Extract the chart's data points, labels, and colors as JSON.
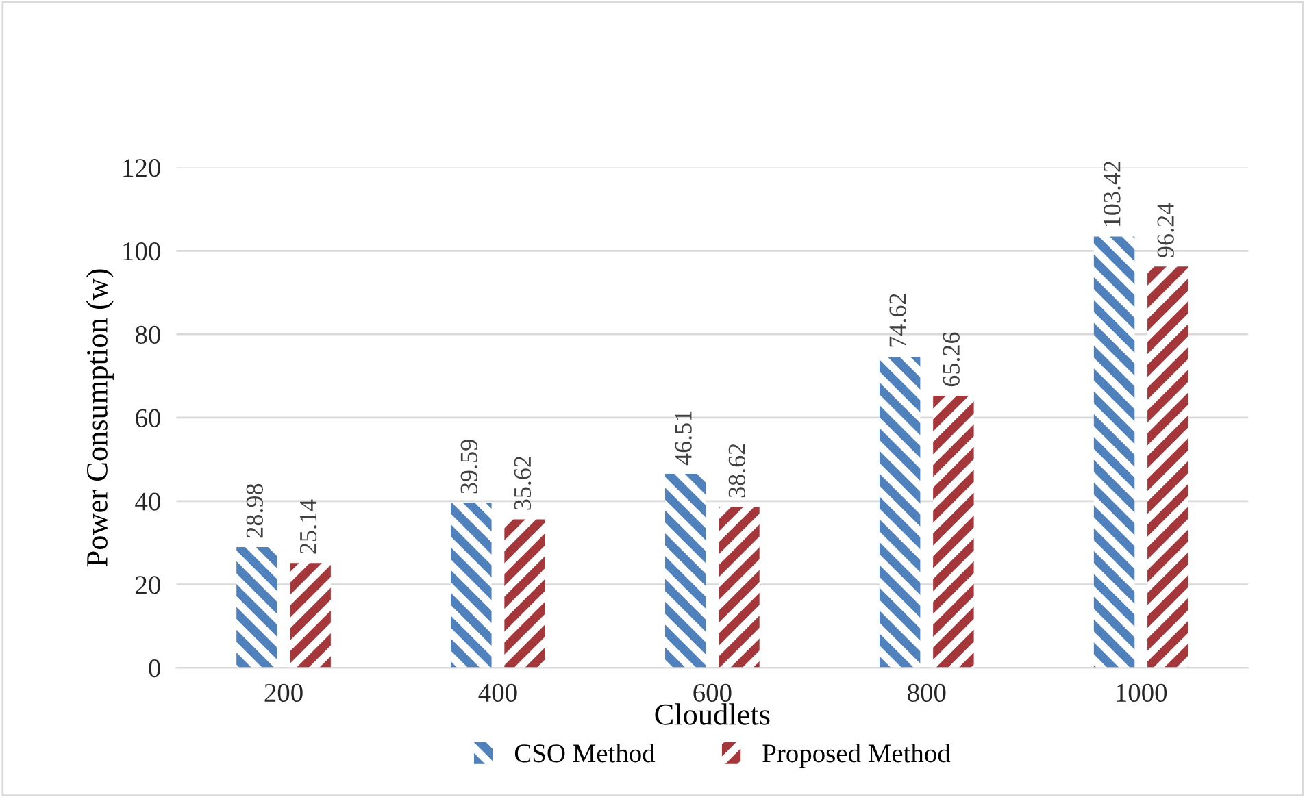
{
  "chart_data": {
    "type": "bar",
    "xlabel": "Cloudlets",
    "ylabel": "Power Consumption (w)",
    "categories": [
      "200",
      "400",
      "600",
      "800",
      "1000"
    ],
    "series": [
      {
        "name": "CSO Method",
        "color": "#4f81bd",
        "values": [
          28.98,
          39.59,
          46.51,
          74.62,
          103.42
        ]
      },
      {
        "name": "Proposed Method",
        "color": "#a5373a",
        "values": [
          25.14,
          35.62,
          38.62,
          65.26,
          96.24
        ]
      }
    ],
    "ylim": [
      0,
      120
    ],
    "yticks": [
      0,
      20,
      40,
      60,
      80,
      100,
      120
    ],
    "grid": "y",
    "legend": "bottom",
    "data_labels": true
  }
}
